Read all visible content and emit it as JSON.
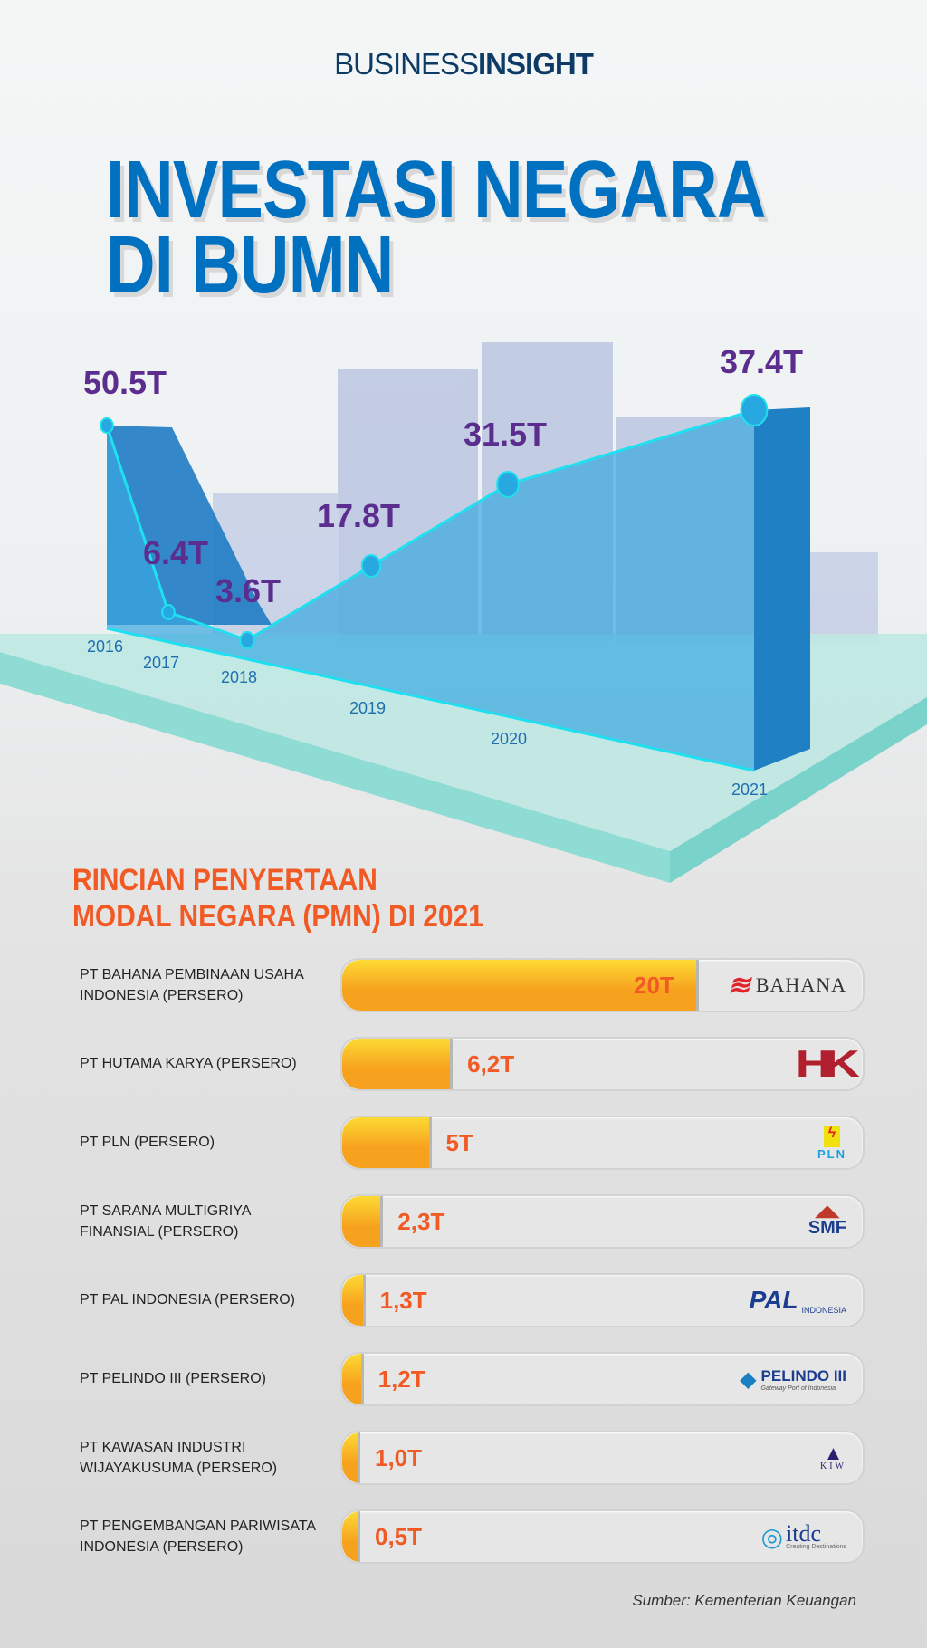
{
  "brand": {
    "part1": "BUSINESS",
    "part2": "INSIGHT"
  },
  "title": {
    "line1": "INVESTASI NEGARA",
    "line2": "DI BUMN"
  },
  "chart_data": {
    "type": "line",
    "x": [
      "2016",
      "2017",
      "2018",
      "2019",
      "2020",
      "2021"
    ],
    "values": [
      50.5,
      6.4,
      3.6,
      17.8,
      31.5,
      37.4
    ],
    "labels": [
      "50.5T",
      "6.4T",
      "3.6T",
      "17.8T",
      "31.5T",
      "37.4T"
    ],
    "unit": "T"
  },
  "section": {
    "line1": "RINCIAN PENYERTAAN",
    "line2": "MODAL NEGARA (PMN) DI 2021"
  },
  "pmn": [
    {
      "company": "PT BAHANA PEMBINAAN USAHA INDONESIA (PERSERO)",
      "value": 20,
      "label": "20T",
      "logo": "BAHANA"
    },
    {
      "company": "PT HUTAMA KARYA (PERSERO)",
      "value": 6.2,
      "label": "6,2T",
      "logo": "HK"
    },
    {
      "company": "PT PLN (PERSERO)",
      "value": 5,
      "label": "5T",
      "logo": "PLN"
    },
    {
      "company": "PT SARANA MULTIGRIYA FINANSIAL (PERSERO)",
      "value": 2.3,
      "label": "2,3T",
      "logo": "SMF"
    },
    {
      "company": "PT PAL INDONESIA (PERSERO)",
      "value": 1.3,
      "label": "1,3T",
      "logo": "PAL",
      "logo_sub": "INDONESIA"
    },
    {
      "company": "PT PELINDO III (PERSERO)",
      "value": 1.2,
      "label": "1,2T",
      "logo": "PELINDO III",
      "logo_sub": "Gateway Port of Indonesia"
    },
    {
      "company": "PT KAWASAN INDUSTRI WIJAYAKUSUMA (PERSERO)",
      "value": 1.0,
      "label": "1,0T",
      "logo": "KIW"
    },
    {
      "company": "PT PENGEMBANGAN PARIWISATA INDONESIA (PERSERO)",
      "value": 0.5,
      "label": "0,5T",
      "logo": "itdc",
      "logo_sub": "Creating Destinations"
    }
  ],
  "source": "Sumber: Kementerian Keuangan",
  "colors": {
    "title": "#0070c0",
    "values": "#5b2d8e",
    "section": "#f15a24",
    "bar_fill": "#f7a21f",
    "chart_line": "#1fe0f0"
  }
}
